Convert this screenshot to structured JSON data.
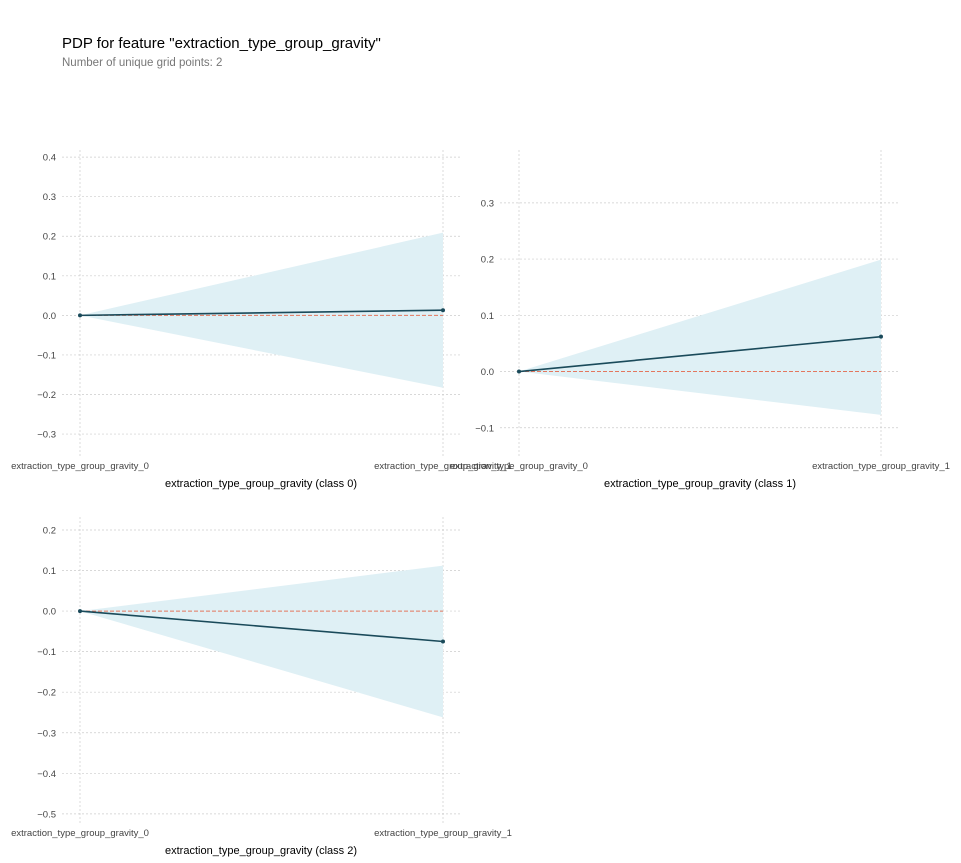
{
  "figure": {
    "title": "PDP for feature \"extraction_type_group_gravity\"",
    "subtitle": "Number of unique grid points: 2"
  },
  "colors": {
    "line": "#1a4a5a",
    "band": "#dff0f5",
    "zero_line": "#e3775e",
    "grid": "#cccccc",
    "tick_text": "#444444",
    "axis_label": "#000000",
    "subtitle": "#777777"
  },
  "chart_data": [
    {
      "type": "line",
      "xlabel": "extraction_type_group_gravity (class 0)",
      "ylabel": "",
      "categories": [
        "extraction_type_group_gravity_0",
        "extraction_type_group_gravity_1"
      ],
      "series": [
        {
          "values": [
            0.0,
            0.013
          ]
        }
      ],
      "band": {
        "lower": [
          0.0,
          -0.183
        ],
        "upper": [
          0.0,
          0.209
        ]
      },
      "yticks": [
        0.4,
        0.3,
        0.2,
        0.1,
        0.0,
        -0.1,
        -0.2,
        -0.3
      ],
      "yticklabels": [
        "0.4",
        "0.3",
        "0.2",
        "0.1",
        "0.0",
        "−0.1",
        "−0.2",
        "−0.3"
      ],
      "ylim": [
        -0.358,
        0.418
      ],
      "grid": true
    },
    {
      "type": "line",
      "xlabel": "extraction_type_group_gravity (class 1)",
      "ylabel": "",
      "categories": [
        "extraction_type_group_gravity_0",
        "extraction_type_group_gravity_1"
      ],
      "series": [
        {
          "values": [
            0.0,
            0.062
          ]
        }
      ],
      "band": {
        "lower": [
          0.0,
          -0.077
        ],
        "upper": [
          0.0,
          0.199
        ]
      },
      "yticks": [
        0.3,
        0.2,
        0.1,
        0.0,
        -0.1
      ],
      "yticklabels": [
        "0.3",
        "0.2",
        "0.1",
        "0.0",
        "−0.1"
      ],
      "ylim": [
        -0.152,
        0.394
      ],
      "grid": true
    },
    {
      "type": "line",
      "xlabel": "extraction_type_group_gravity (class 2)",
      "ylabel": "",
      "categories": [
        "extraction_type_group_gravity_0",
        "extraction_type_group_gravity_1"
      ],
      "series": [
        {
          "values": [
            0.0,
            -0.075
          ]
        }
      ],
      "band": {
        "lower": [
          0.0,
          -0.262
        ],
        "upper": [
          0.0,
          0.112
        ]
      },
      "yticks": [
        0.2,
        0.1,
        0.0,
        -0.1,
        -0.2,
        -0.3,
        -0.4,
        -0.5
      ],
      "yticklabels": [
        "0.2",
        "0.1",
        "0.0",
        "−0.1",
        "−0.2",
        "−0.3",
        "−0.4",
        "−0.5"
      ],
      "ylim": [
        -0.525,
        0.232
      ],
      "grid": true
    }
  ]
}
